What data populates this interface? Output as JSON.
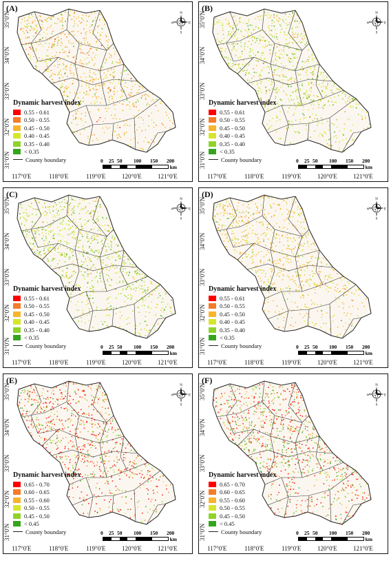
{
  "common": {
    "lat_labels": [
      "35°0'N",
      "34°0'N",
      "33°0'N",
      "32°0'N",
      "31°0'N"
    ],
    "lon_labels": [
      "117°0'E",
      "118°0'E",
      "119°0'E",
      "120°0'E",
      "121°0'E"
    ],
    "legend_title": "Dynamic harvest index",
    "county_boundary": "County boundary",
    "scale_labels": [
      "0",
      "25",
      "50",
      "100",
      "150",
      "200"
    ],
    "scale_unit": "km",
    "compass": {
      "n": "N",
      "s": "S",
      "e": "E",
      "w": "W"
    }
  },
  "legend_colors": [
    "#ff0000",
    "#f47c2a",
    "#f9b42d",
    "#d6e62c",
    "#8fd32a",
    "#36a51e"
  ],
  "classes_low": [
    "0.55 - 0.61",
    "0.50 - 0.55",
    "0.45 - 0.50",
    "0.40 - 0.45",
    "0.35 - 0.40",
    "< 0.35"
  ],
  "classes_high": [
    "0.65 - 0.70",
    "0.60 - 0.65",
    "0.55 - 0.60",
    "0.50 - 0.55",
    "0.45 - 0.50",
    "< 0.45"
  ],
  "panels": [
    {
      "label": "(A)",
      "classes": "low",
      "weights": [
        0.02,
        0.12,
        0.55,
        0.2,
        0.08,
        0.03
      ]
    },
    {
      "label": "(B)",
      "classes": "low",
      "weights": [
        0.0,
        0.02,
        0.15,
        0.45,
        0.3,
        0.08
      ]
    },
    {
      "label": "(C)",
      "classes": "low",
      "weights": [
        0.0,
        0.01,
        0.1,
        0.4,
        0.4,
        0.09
      ]
    },
    {
      "label": "(D)",
      "classes": "low",
      "weights": [
        0.0,
        0.05,
        0.6,
        0.25,
        0.08,
        0.02
      ]
    },
    {
      "label": "(E)",
      "classes": "high",
      "weights": [
        0.35,
        0.3,
        0.05,
        0.05,
        0.15,
        0.1
      ]
    },
    {
      "label": "(F)",
      "classes": "high",
      "weights": [
        0.3,
        0.25,
        0.05,
        0.05,
        0.2,
        0.15
      ]
    }
  ]
}
